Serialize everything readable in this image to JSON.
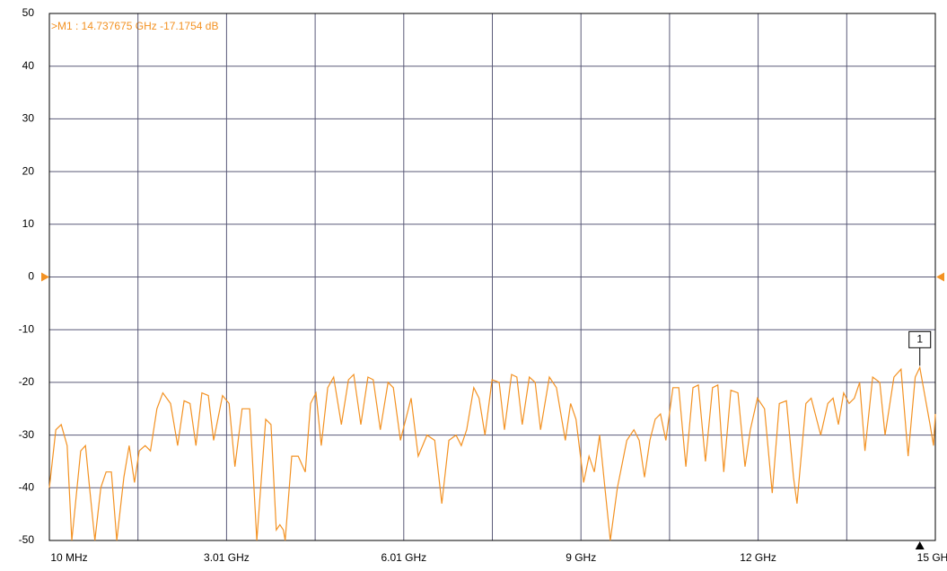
{
  "chart_data": {
    "type": "line",
    "annotation": ">M1 :  14.737675 GHz -17.1754  dB",
    "color": "#f39223",
    "grid": true,
    "ylim": [
      -50,
      50
    ],
    "yticks": [
      50,
      40,
      30,
      20,
      10,
      0,
      -10,
      -20,
      -30,
      -40,
      -50
    ],
    "xlim": [
      0.01,
      15
    ],
    "xticks": [
      {
        "value": 0.01,
        "label": "10 MHz"
      },
      {
        "value": 3.008,
        "label": "3.01 GHz"
      },
      {
        "value": 6.006,
        "label": "6.01 GHz"
      },
      {
        "value": 9.004,
        "label": "9 GHz"
      },
      {
        "value": 12.002,
        "label": "12 GHz"
      },
      {
        "value": 15,
        "label": "15 GHz"
      }
    ],
    "marker": {
      "label": "1",
      "x": 14.737675,
      "y": -17.1754
    },
    "x": [
      0.01,
      0.12,
      0.21,
      0.31,
      0.39,
      0.54,
      0.62,
      0.69,
      0.78,
      0.88,
      0.97,
      1.06,
      1.15,
      1.27,
      1.36,
      1.45,
      1.53,
      1.63,
      1.72,
      1.83,
      1.93,
      2.06,
      2.18,
      2.29,
      2.39,
      2.49,
      2.59,
      2.7,
      2.79,
      2.94,
      3.05,
      3.15,
      3.27,
      3.4,
      3.52,
      3.67,
      3.76,
      3.85,
      3.91,
      3.97,
      4.0,
      4.11,
      4.22,
      4.34,
      4.43,
      4.52,
      4.61,
      4.72,
      4.82,
      4.95,
      5.07,
      5.16,
      5.28,
      5.4,
      5.49,
      5.61,
      5.74,
      5.83,
      5.95,
      6.13,
      6.25,
      6.4,
      6.53,
      6.65,
      6.77,
      6.89,
      6.98,
      7.07,
      7.19,
      7.28,
      7.38,
      7.5,
      7.62,
      7.71,
      7.83,
      7.92,
      8.01,
      8.13,
      8.23,
      8.32,
      8.47,
      8.59,
      8.74,
      8.83,
      8.92,
      9.05,
      9.14,
      9.23,
      9.32,
      9.41,
      9.5,
      9.62,
      9.78,
      9.9,
      9.99,
      10.08,
      10.17,
      10.26,
      10.35,
      10.44,
      10.56,
      10.66,
      10.78,
      10.9,
      10.99,
      11.11,
      11.23,
      11.32,
      11.42,
      11.54,
      11.66,
      11.78,
      11.87,
      11.99,
      12.11,
      12.24,
      12.36,
      12.48,
      12.6,
      12.66,
      12.81,
      12.9,
      13.06,
      13.18,
      13.27,
      13.36,
      13.45,
      13.54,
      13.63,
      13.72,
      13.81,
      13.94,
      14.06,
      14.15,
      14.3,
      14.42,
      14.54,
      14.66,
      14.737675,
      14.91,
      14.97,
      15.0
    ],
    "values": [
      -40,
      -29,
      -28,
      -32,
      -50,
      -33,
      -32,
      -40,
      -50,
      -40,
      -37,
      -37,
      -50,
      -38,
      -32,
      -39,
      -33,
      -32,
      -33,
      -25,
      -22,
      -24,
      -32,
      -23.5,
      -24,
      -32,
      -22,
      -22.5,
      -31,
      -22.5,
      -24,
      -36,
      -25,
      -25,
      -50,
      -27,
      -28,
      -48,
      -47,
      -48,
      -50,
      -34,
      -34,
      -37,
      -24,
      -22,
      -32,
      -21,
      -19,
      -28,
      -19.5,
      -18.5,
      -28,
      -19,
      -19.5,
      -29,
      -20,
      -21,
      -31,
      -23,
      -34,
      -30,
      -31,
      -43,
      -31,
      -30,
      -32,
      -29,
      -21,
      -23,
      -30,
      -19.5,
      -20,
      -29,
      -18.5,
      -19,
      -28,
      -19,
      -20,
      -29,
      -19,
      -21,
      -31,
      -24,
      -27,
      -39,
      -34,
      -37,
      -30,
      -40,
      -50,
      -40,
      -31,
      -29,
      -31,
      -38,
      -31,
      -27,
      -26,
      -31,
      -21,
      -21,
      -36,
      -21,
      -20.5,
      -35,
      -21,
      -20.5,
      -37,
      -21.5,
      -22,
      -36,
      -29,
      -23,
      -25,
      -41,
      -24,
      -23.5,
      -38,
      -43,
      -24,
      -23,
      -30,
      -24,
      -23,
      -28,
      -22,
      -24,
      -23,
      -20,
      -33,
      -19,
      -20,
      -30,
      -19,
      -17.5,
      -34,
      -19,
      -17.1754,
      -28,
      -32,
      -26
    ]
  }
}
